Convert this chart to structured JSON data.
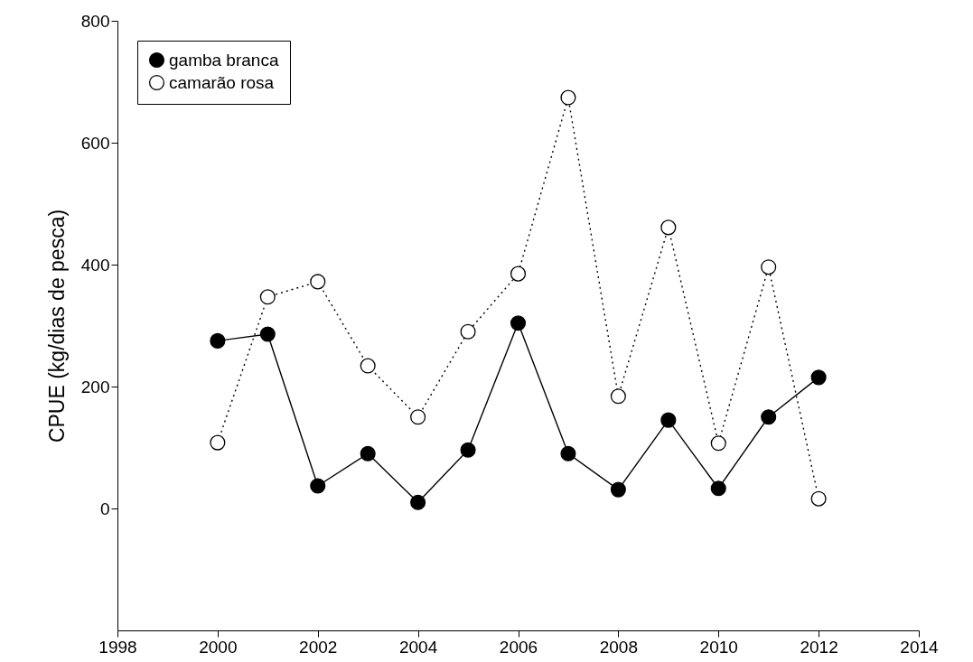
{
  "chart_data": {
    "type": "line",
    "ylabel": "CPUE (kg/dias de pesca)",
    "x": [
      2000,
      2001,
      2002,
      2003,
      2004,
      2005,
      2006,
      2007,
      2008,
      2009,
      2010,
      2011,
      2012
    ],
    "series": [
      {
        "name": "gamba branca",
        "color": "#000000",
        "line_style": "solid",
        "values": [
          275,
          286,
          37,
          90,
          10,
          96,
          304,
          90,
          31,
          145,
          33,
          150,
          215
        ]
      },
      {
        "name": "camarão rosa",
        "color": "#000000",
        "line_style": "dotted",
        "values": [
          108,
          347,
          372,
          234,
          150,
          290,
          385,
          674,
          184,
          461,
          107,
          396,
          16
        ]
      }
    ],
    "xlim": [
      1998,
      2014
    ],
    "xticks": [
      1998,
      2000,
      2002,
      2004,
      2006,
      2008,
      2010,
      2012,
      2014
    ],
    "ylim": [
      -200,
      800
    ],
    "yticks": [
      0,
      200,
      400,
      600,
      800
    ],
    "marker": "circle",
    "legend": "top left",
    "grid": false
  }
}
